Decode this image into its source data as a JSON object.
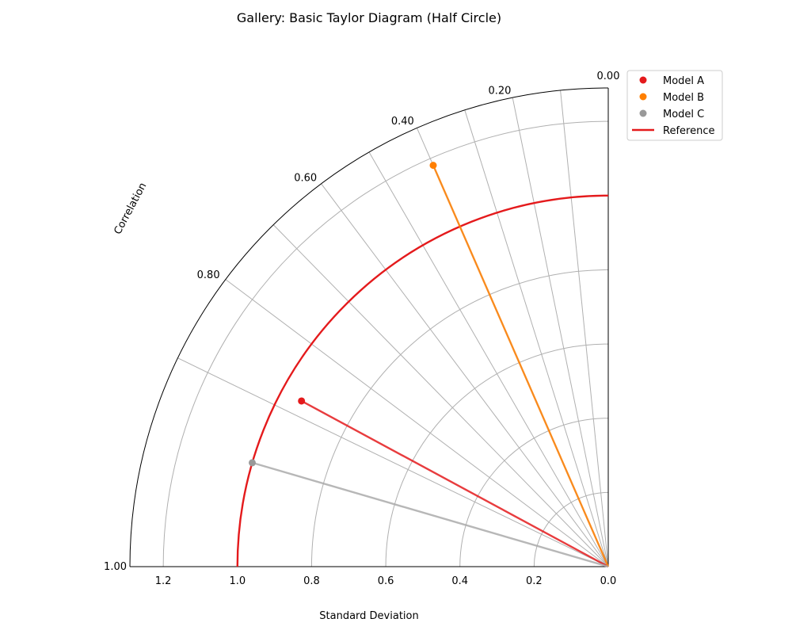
{
  "chart_data": {
    "type": "scatter",
    "title": "Gallery: Basic Taylor Diagram (Half Circle)",
    "xlabel": "Standard Deviation",
    "correlation_label": "Correlation",
    "std_range": [
      0,
      1.29
    ],
    "std_ticks": [
      0.0,
      0.2,
      0.4,
      0.6,
      0.8,
      1.0,
      1.2
    ],
    "std_tick_labels": [
      "0.0",
      "0.2",
      "0.4",
      "0.6",
      "0.8",
      "1.0",
      "1.2"
    ],
    "correlation_ticks": [
      0.0,
      0.2,
      0.4,
      0.6,
      0.8,
      1.0
    ],
    "correlation_tick_labels": [
      "0.00",
      "0.20",
      "0.40",
      "0.60",
      "0.80",
      "1.00"
    ],
    "reference": {
      "name": "Reference",
      "std": 1.0,
      "color": "#e41a1c"
    },
    "series": [
      {
        "name": "Model A",
        "std": 0.94,
        "correlation": 0.88,
        "color": "#e41a1c"
      },
      {
        "name": "Model B",
        "std": 1.18,
        "correlation": 0.4,
        "color": "#ff7f00"
      },
      {
        "name": "Model C",
        "std": 1.0,
        "correlation": 0.96,
        "color": "#999999"
      }
    ],
    "grid": true,
    "legend_position": "outside-top-right"
  }
}
